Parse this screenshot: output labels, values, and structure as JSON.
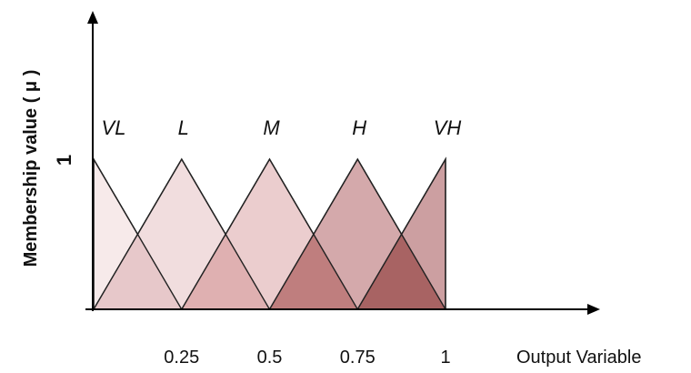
{
  "chart_data": {
    "type": "area",
    "title": "",
    "xlabel": "Output Variable",
    "ylabel": "Membership value ( μ )",
    "xlim": [
      0,
      1
    ],
    "ylim": [
      0,
      1
    ],
    "y_tick_labels": [
      "1"
    ],
    "x_ticks": [
      {
        "value": 0.25,
        "label": "0.25"
      },
      {
        "value": 0.5,
        "label": "0.5"
      },
      {
        "value": 0.75,
        "label": "0.75"
      },
      {
        "value": 1,
        "label": "1"
      }
    ],
    "grid": false,
    "legend": "none",
    "series": [
      {
        "name": "VL",
        "points": [
          [
            0,
            1
          ],
          [
            0,
            0
          ],
          [
            0.25,
            0
          ]
        ],
        "peak": 0,
        "color": "#f6e6e6"
      },
      {
        "name": "L",
        "points": [
          [
            0,
            0
          ],
          [
            0.25,
            1
          ],
          [
            0.5,
            0
          ]
        ],
        "peak": 0.25,
        "color": "#efd7d8"
      },
      {
        "name": "M",
        "points": [
          [
            0.25,
            0
          ],
          [
            0.5,
            1
          ],
          [
            0.75,
            0
          ]
        ],
        "peak": 0.5,
        "color": "#e8c4c5"
      },
      {
        "name": "H",
        "points": [
          [
            0.5,
            0
          ],
          [
            0.75,
            1
          ],
          [
            1,
            0
          ]
        ],
        "peak": 0.75,
        "color": "#cc9a9c"
      },
      {
        "name": "VH",
        "points": [
          [
            0.75,
            0
          ],
          [
            1,
            1
          ],
          [
            1,
            0
          ]
        ],
        "peak": 1,
        "color": "#c38e90"
      }
    ],
    "overlap_colors": [
      "#e7c8ca",
      "#dfb0b1",
      "#bf7e7e",
      "#a86363"
    ]
  }
}
